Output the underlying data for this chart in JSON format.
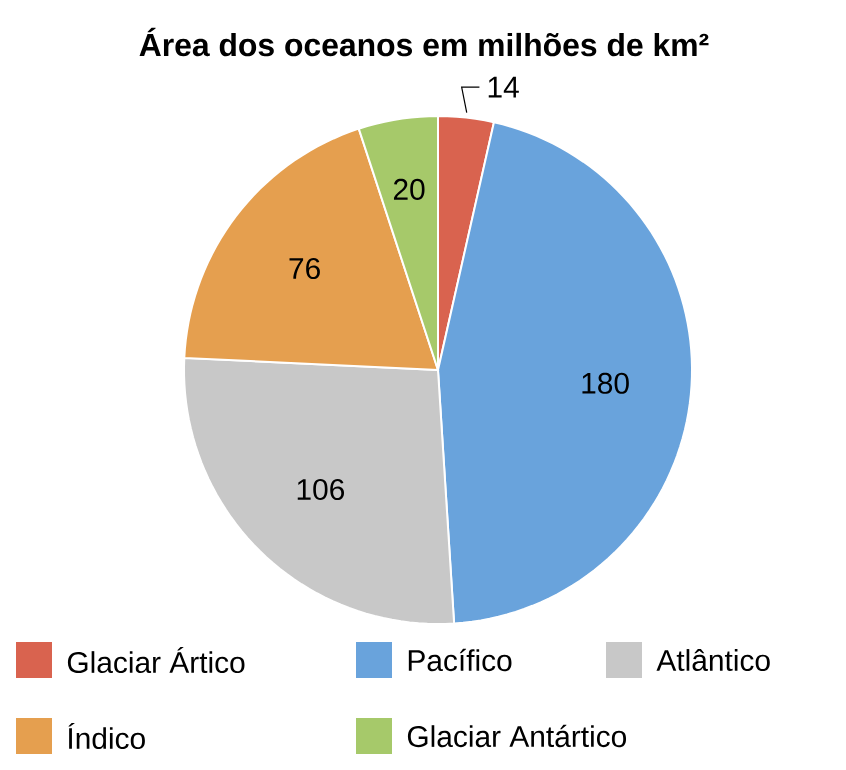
{
  "chart_data": {
    "type": "pie",
    "title": "Área dos oceanos em milhões de km²",
    "categories": [
      "Glaciar Ártico",
      "Pacífico",
      "Atlântico",
      "Índico",
      "Glaciar Antártico"
    ],
    "values": [
      14,
      180,
      106,
      76,
      20
    ],
    "colors": [
      "#d9634f",
      "#69a3dc",
      "#c8c8c8",
      "#e59f4f",
      "#a6c96a"
    ],
    "data_labels": true,
    "legend": "bottom"
  }
}
